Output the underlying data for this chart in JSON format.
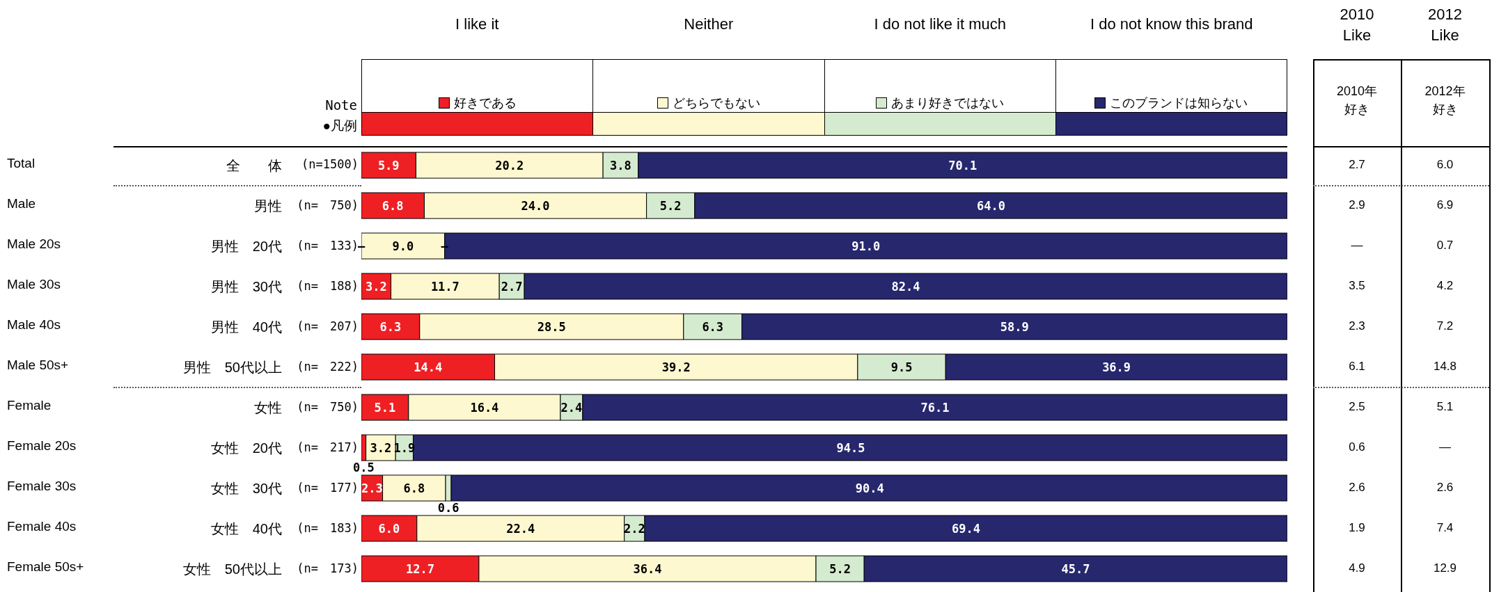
{
  "chart_data": {
    "type": "bar",
    "orientation": "horizontal",
    "stacked": true,
    "categories": [
      "全　　体",
      "男性",
      "男性　20代",
      "男性　30代",
      "男性　40代",
      "男性　50代以上",
      "女性",
      "女性　20代",
      "女性　30代",
      "女性　40代",
      "女性　50代以上"
    ],
    "series": [
      {
        "name": "好きである",
        "color": "#ee2024",
        "values": [
          5.9,
          6.8,
          null,
          3.2,
          6.3,
          14.4,
          5.1,
          0.5,
          2.3,
          6.0,
          12.7
        ],
        "value_labels": [
          "5.9",
          "6.8",
          null,
          "3.2",
          "6.3",
          "14.4",
          "5.1",
          "0.5",
          "2.3",
          "6.0",
          "12.7"
        ]
      },
      {
        "name": "どちらでもない",
        "color": "#fdf8cf",
        "values": [
          20.2,
          24.0,
          9.0,
          11.7,
          28.5,
          39.2,
          16.4,
          3.2,
          6.8,
          22.4,
          36.4
        ],
        "value_labels": [
          "20.2",
          "24.0",
          "9.0",
          "11.7",
          "28.5",
          "39.2",
          "16.4",
          "3.2",
          "6.8",
          "22.4",
          "36.4"
        ]
      },
      {
        "name": "あまり好きではない",
        "color": "#d5ebcf",
        "values": [
          3.8,
          5.2,
          null,
          2.7,
          6.3,
          9.5,
          2.4,
          1.9,
          0.6,
          2.2,
          5.2
        ],
        "value_labels": [
          "3.8",
          "5.2",
          null,
          "2.7",
          "6.3",
          "9.5",
          "2.4",
          "1.9",
          "0.6",
          "2.2",
          "5.2"
        ]
      },
      {
        "name": "このブランドは知らない",
        "color": "#27276e",
        "values": [
          70.1,
          64.0,
          91.0,
          82.4,
          58.9,
          36.9,
          76.1,
          94.5,
          90.4,
          69.4,
          45.7
        ],
        "value_labels": [
          "70.1",
          "64.0",
          "91.0",
          "82.4",
          "58.9",
          "36.9",
          "76.1",
          "94.5",
          "90.4",
          "69.4",
          "45.7"
        ]
      }
    ],
    "xlim": [
      0,
      100
    ],
    "tick_labels": false,
    "grid": false,
    "legend": "top",
    "annotations": [
      "I like it",
      "Neither",
      "I do not like it much",
      "I do not know this brand",
      "Note",
      "●凡例",
      "Total",
      "Male",
      "Male 20s",
      "Male 30s",
      "Male 40s",
      "Male 50s+",
      "Female",
      "Female 20s",
      "Female 30s",
      "Female 40s",
      "Female 50s+",
      "(n=1500)",
      "(n=　750)",
      "(n=　133)",
      "(n=　188)",
      "(n=　207)",
      "(n=　222)",
      "(n=　750)",
      "(n=　217)",
      "(n=　177)",
      "(n=　183)",
      "(n=　173)",
      "2010 Like",
      "2012 Like",
      "2010年好き",
      "2012年好き",
      "2.7",
      "6.0",
      "2.9",
      "6.9",
      "—",
      "0.7",
      "3.5",
      "4.2",
      "2.3",
      "7.2",
      "6.1",
      "14.8",
      "2.5",
      "5.1",
      "0.6",
      "—",
      "2.6",
      "2.6",
      "1.9",
      "7.4",
      "4.9",
      "12.9",
      {
        "text": "—",
        "x": 0,
        "y": "男性　20代"
      },
      {
        "text": "—",
        "x": 9.0,
        "y": "男性　20代"
      }
    ]
  }
}
